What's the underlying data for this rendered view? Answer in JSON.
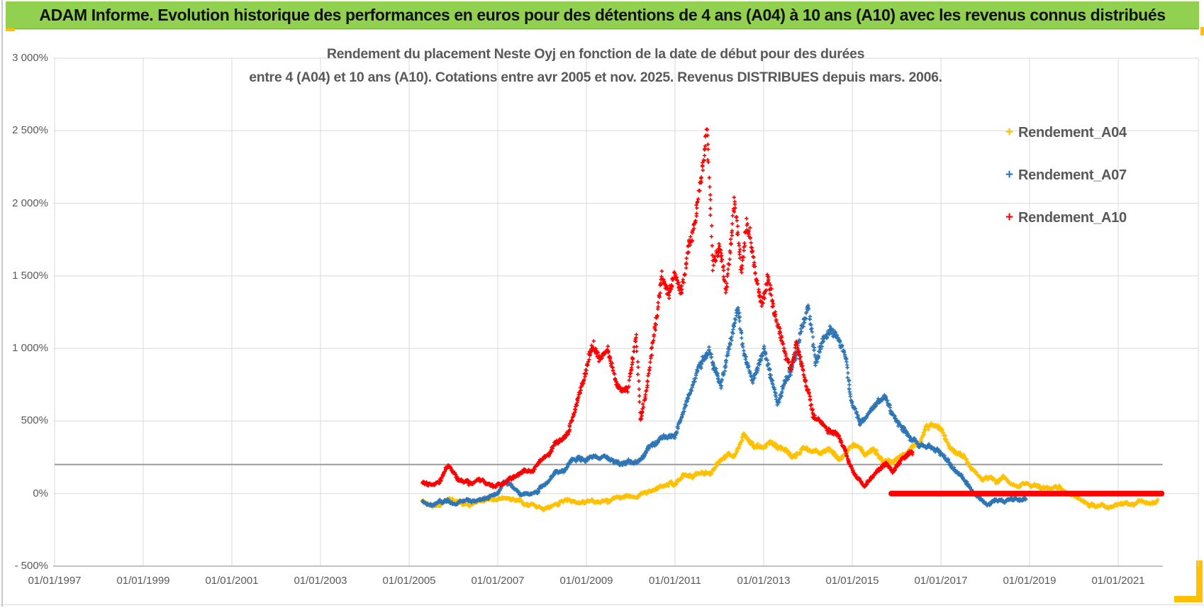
{
  "window": {
    "title": "ADAM Informe. Evolution historique des performances en euros pour des détentions de 4 ans (A04) à 10 ans (A10) avec les revenus connus distribués"
  },
  "colors": {
    "header_bg": "#92D050",
    "accent_gold": "#FFC000",
    "grid": "#D9D9D9",
    "axis_line": "#ADADAD",
    "ref_line": "#9B9B9B",
    "text": "#595959",
    "series_a04": "#FFC000",
    "series_a07": "#2E75B6",
    "series_a10": "#FF0000"
  },
  "chart_data": {
    "type": "scatter",
    "title_lines": [
      "Rendement du placement Neste Oyj en fonction de la date de début pour des durées",
      "entre 4 (A04) et 10 ans (A10). Cotations entre avr 2005 et nov. 2025. Revenus DISTRIBUES depuis mars. 2006."
    ],
    "x_axis": {
      "tick_labels": [
        "01/01/1997",
        "01/01/1999",
        "01/01/2001",
        "01/01/2003",
        "01/01/2005",
        "01/01/2007",
        "01/01/2009",
        "01/01/2011",
        "01/01/2013",
        "01/01/2015",
        "01/01/2017",
        "01/01/2019",
        "01/01/2021"
      ],
      "start_year": 1997,
      "tick_step_years": 2,
      "end_year": 2022.8
    },
    "y_axis": {
      "tick_labels": [
        "3 000%",
        "2 500%",
        "2 000%",
        "1 500%",
        "1 000%",
        "500%",
        "0%",
        "- 500%"
      ],
      "max_pct": 3000,
      "min_pct": -500,
      "step_pct": 500,
      "unit": "%"
    },
    "legend": [
      {
        "label": "Rendement_A04",
        "color": "#FFC000"
      },
      {
        "label": "Rendement_A07",
        "color": "#2E75B6"
      },
      {
        "label": "Rendement_A10",
        "color": "#FF0000"
      }
    ],
    "grid": true,
    "annotations": {
      "zero_highlight_line": {
        "value_pct": 0,
        "from_year": 2015.88,
        "to_year": 2021.98,
        "color": "#FF0000",
        "thickness_px": 8
      },
      "reference_line": {
        "value_pct": 200,
        "from_year": 1997.0,
        "to_year": 2022.0,
        "color": "#9B9B9B"
      }
    },
    "series": [
      {
        "name": "Rendement_A04",
        "color": "#FFC000",
        "marker": "plus",
        "anchors": [
          [
            2005.3,
            -45
          ],
          [
            2005.6,
            -70
          ],
          [
            2005.9,
            -55
          ],
          [
            2006.2,
            -75
          ],
          [
            2006.5,
            -60
          ],
          [
            2006.8,
            -70
          ],
          [
            2007.1,
            -40
          ],
          [
            2007.4,
            -55
          ],
          [
            2007.7,
            -70
          ],
          [
            2008.0,
            -90
          ],
          [
            2008.3,
            -70
          ],
          [
            2008.6,
            -55
          ],
          [
            2008.9,
            -65
          ],
          [
            2009.2,
            -50
          ],
          [
            2009.5,
            -55
          ],
          [
            2009.8,
            -30
          ],
          [
            2010.1,
            -10
          ],
          [
            2010.4,
            25
          ],
          [
            2010.7,
            45
          ],
          [
            2011.0,
            80
          ],
          [
            2011.2,
            130
          ],
          [
            2011.4,
            110
          ],
          [
            2011.6,
            140
          ],
          [
            2011.8,
            160
          ],
          [
            2012.0,
            220
          ],
          [
            2012.2,
            280
          ],
          [
            2012.35,
            255
          ],
          [
            2012.54,
            400
          ],
          [
            2012.7,
            360
          ],
          [
            2012.85,
            320
          ],
          [
            2013.0,
            300
          ],
          [
            2013.15,
            345
          ],
          [
            2013.3,
            305
          ],
          [
            2013.5,
            275
          ],
          [
            2013.7,
            255
          ],
          [
            2013.9,
            310
          ],
          [
            2014.1,
            295
          ],
          [
            2014.3,
            275
          ],
          [
            2014.5,
            295
          ],
          [
            2014.7,
            270
          ],
          [
            2014.9,
            300
          ],
          [
            2015.1,
            325
          ],
          [
            2015.3,
            285
          ],
          [
            2015.5,
            305
          ],
          [
            2015.7,
            260
          ],
          [
            2015.9,
            230
          ],
          [
            2016.1,
            280
          ],
          [
            2016.3,
            290
          ],
          [
            2016.5,
            340
          ],
          [
            2016.7,
            450
          ],
          [
            2016.89,
            500
          ],
          [
            2017.05,
            420
          ],
          [
            2017.2,
            330
          ],
          [
            2017.35,
            300
          ],
          [
            2017.5,
            255
          ],
          [
            2017.65,
            180
          ],
          [
            2017.8,
            120
          ],
          [
            2017.95,
            90
          ],
          [
            2018.1,
            105
          ],
          [
            2018.25,
            80
          ],
          [
            2018.4,
            115
          ],
          [
            2018.55,
            70
          ],
          [
            2018.7,
            60
          ],
          [
            2018.9,
            85
          ],
          [
            2019.1,
            70
          ],
          [
            2019.3,
            55
          ],
          [
            2019.5,
            30
          ],
          [
            2019.7,
            25
          ],
          [
            2019.9,
            5
          ],
          [
            2020.1,
            -40
          ],
          [
            2020.3,
            -75
          ],
          [
            2020.5,
            -95
          ],
          [
            2020.7,
            -100
          ],
          [
            2020.9,
            -90
          ],
          [
            2021.1,
            -95
          ],
          [
            2021.3,
            -85
          ],
          [
            2021.5,
            -65
          ],
          [
            2021.7,
            -75
          ],
          [
            2021.9,
            -65
          ]
        ]
      },
      {
        "name": "Rendement_A07",
        "color": "#2E75B6",
        "marker": "plus",
        "anchors": [
          [
            2005.3,
            -50
          ],
          [
            2005.55,
            -60
          ],
          [
            2005.8,
            -45
          ],
          [
            2006.05,
            -55
          ],
          [
            2006.3,
            -40
          ],
          [
            2006.55,
            -50
          ],
          [
            2006.8,
            -30
          ],
          [
            2007.0,
            0
          ],
          [
            2007.15,
            65
          ],
          [
            2007.3,
            40
          ],
          [
            2007.5,
            -15
          ],
          [
            2007.7,
            5
          ],
          [
            2007.9,
            20
          ],
          [
            2008.1,
            70
          ],
          [
            2008.35,
            130
          ],
          [
            2008.6,
            190
          ],
          [
            2008.8,
            230
          ],
          [
            2009.1,
            255
          ],
          [
            2009.35,
            230
          ],
          [
            2009.64,
            238
          ],
          [
            2009.9,
            225
          ],
          [
            2010.17,
            223
          ],
          [
            2010.45,
            330
          ],
          [
            2010.7,
            404
          ],
          [
            2011.02,
            418
          ],
          [
            2011.24,
            629
          ],
          [
            2011.5,
            858
          ],
          [
            2011.77,
            1005
          ],
          [
            2011.9,
            870
          ],
          [
            2012.04,
            760
          ],
          [
            2012.2,
            980
          ],
          [
            2012.41,
            1249
          ],
          [
            2012.55,
            950
          ],
          [
            2012.73,
            760
          ],
          [
            2012.9,
            880
          ],
          [
            2013.0,
            1005
          ],
          [
            2013.15,
            820
          ],
          [
            2013.32,
            628
          ],
          [
            2013.5,
            780
          ],
          [
            2013.7,
            950
          ],
          [
            2013.85,
            1150
          ],
          [
            2014.01,
            1337
          ],
          [
            2014.17,
            921
          ],
          [
            2014.33,
            1060
          ],
          [
            2014.49,
            1151
          ],
          [
            2014.7,
            1068
          ],
          [
            2014.86,
            906
          ],
          [
            2014.97,
            662
          ],
          [
            2015.05,
            598
          ],
          [
            2015.2,
            500
          ],
          [
            2015.35,
            540
          ],
          [
            2015.55,
            610
          ],
          [
            2015.72,
            647
          ],
          [
            2015.9,
            540
          ],
          [
            2016.05,
            470
          ],
          [
            2016.25,
            418
          ],
          [
            2016.45,
            370
          ],
          [
            2016.65,
            345
          ],
          [
            2016.84,
            334
          ],
          [
            2017.0,
            280
          ],
          [
            2017.2,
            215
          ],
          [
            2017.4,
            150
          ],
          [
            2017.6,
            80
          ],
          [
            2017.75,
            15
          ],
          [
            2017.9,
            -35
          ],
          [
            2018.05,
            -60
          ],
          [
            2018.2,
            -45
          ],
          [
            2018.4,
            -60
          ],
          [
            2018.6,
            -40
          ],
          [
            2018.75,
            -50
          ],
          [
            2018.92,
            -40
          ]
        ]
      },
      {
        "name": "Rendement_A10",
        "color": "#FF0000",
        "marker": "plus",
        "anchors": [
          [
            2005.3,
            80
          ],
          [
            2005.5,
            45
          ],
          [
            2005.7,
            90
          ],
          [
            2005.9,
            185
          ],
          [
            2006.1,
            75
          ],
          [
            2006.35,
            55
          ],
          [
            2006.6,
            90
          ],
          [
            2006.85,
            65
          ],
          [
            2007.1,
            80
          ],
          [
            2007.35,
            130
          ],
          [
            2007.6,
            185
          ],
          [
            2007.8,
            160
          ],
          [
            2008.0,
            210
          ],
          [
            2008.2,
            280
          ],
          [
            2008.4,
            360
          ],
          [
            2008.6,
            430
          ],
          [
            2008.8,
            640
          ],
          [
            2009.0,
            870
          ],
          [
            2009.16,
            1035
          ],
          [
            2009.3,
            930
          ],
          [
            2009.48,
            975
          ],
          [
            2009.65,
            800
          ],
          [
            2009.8,
            700
          ],
          [
            2009.95,
            720
          ],
          [
            2010.12,
            1100
          ],
          [
            2010.22,
            490
          ],
          [
            2010.35,
            700
          ],
          [
            2010.44,
            865
          ],
          [
            2010.58,
            1200
          ],
          [
            2010.7,
            1500
          ],
          [
            2010.85,
            1350
          ],
          [
            2011.0,
            1540
          ],
          [
            2011.15,
            1400
          ],
          [
            2011.3,
            1700
          ],
          [
            2011.45,
            1900
          ],
          [
            2011.58,
            2200
          ],
          [
            2011.72,
            2550
          ],
          [
            2011.85,
            1600
          ],
          [
            2012.0,
            1800
          ],
          [
            2012.15,
            1420
          ],
          [
            2012.35,
            2020
          ],
          [
            2012.5,
            1520
          ],
          [
            2012.62,
            1950
          ],
          [
            2012.8,
            1620
          ],
          [
            2012.95,
            1320
          ],
          [
            2013.1,
            1500
          ],
          [
            2013.25,
            1230
          ],
          [
            2013.45,
            980
          ],
          [
            2013.6,
            830
          ],
          [
            2013.75,
            1040
          ],
          [
            2013.9,
            824
          ],
          [
            2014.12,
            531
          ],
          [
            2014.38,
            433
          ],
          [
            2014.65,
            404
          ],
          [
            2014.9,
            230
          ],
          [
            2015.1,
            110
          ],
          [
            2015.26,
            52
          ],
          [
            2015.5,
            140
          ],
          [
            2015.77,
            223
          ],
          [
            2015.93,
            174
          ],
          [
            2016.1,
            230
          ],
          [
            2016.28,
            281
          ],
          [
            2016.36,
            270
          ]
        ]
      }
    ]
  }
}
